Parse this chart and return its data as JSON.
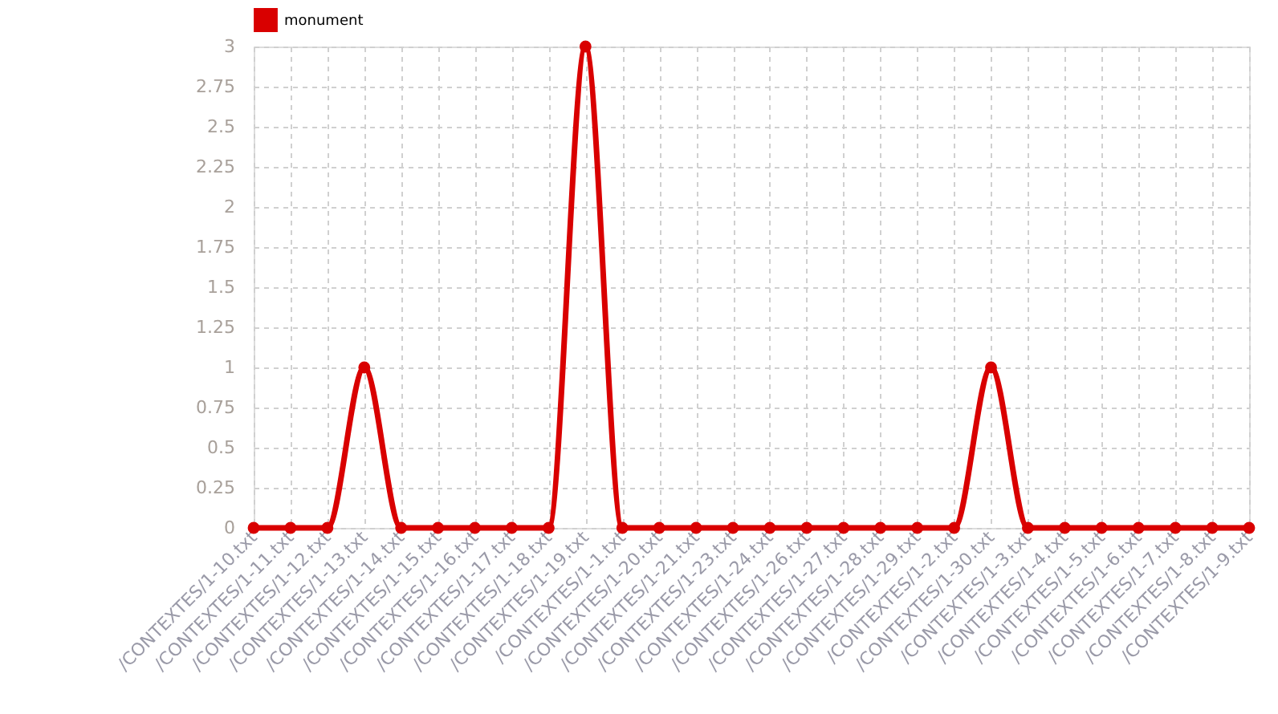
{
  "chart_data": {
    "type": "line",
    "categories": [
      "/CONTEXTES/1-10.txt",
      "/CONTEXTES/1-11.txt",
      "/CONTEXTES/1-12.txt",
      "/CONTEXTES/1-13.txt",
      "/CONTEXTES/1-14.txt",
      "/CONTEXTES/1-15.txt",
      "/CONTEXTES/1-16.txt",
      "/CONTEXTES/1-17.txt",
      "/CONTEXTES/1-18.txt",
      "/CONTEXTES/1-19.txt",
      "/CONTEXTES/1-1.txt",
      "/CONTEXTES/1-20.txt",
      "/CONTEXTES/1-21.txt",
      "/CONTEXTES/1-23.txt",
      "/CONTEXTES/1-24.txt",
      "/CONTEXTES/1-26.txt",
      "/CONTEXTES/1-27.txt",
      "/CONTEXTES/1-28.txt",
      "/CONTEXTES/1-29.txt",
      "/CONTEXTES/1-2.txt",
      "/CONTEXTES/1-30.txt",
      "/CONTEXTES/1-3.txt",
      "/CONTEXTES/1-4.txt",
      "/CONTEXTES/1-5.txt",
      "/CONTEXTES/1-6.txt",
      "/CONTEXTES/1-7.txt",
      "/CONTEXTES/1-8.txt",
      "/CONTEXTES/1-9.txt"
    ],
    "series": [
      {
        "name": "monument",
        "color": "#d90000",
        "values": [
          0,
          0,
          0,
          1,
          0,
          0,
          0,
          0,
          0,
          3,
          0,
          0,
          0,
          0,
          0,
          0,
          0,
          0,
          0,
          0,
          1,
          0,
          0,
          0,
          0,
          0,
          0,
          0
        ]
      }
    ],
    "ylim": [
      0,
      3
    ],
    "yticks": [
      0,
      0.25,
      0.5,
      0.75,
      1,
      1.25,
      1.5,
      1.75,
      2,
      2.25,
      2.5,
      2.75,
      3
    ],
    "grid": true,
    "legend": "top",
    "marker": "circle",
    "line_style": "solid"
  }
}
